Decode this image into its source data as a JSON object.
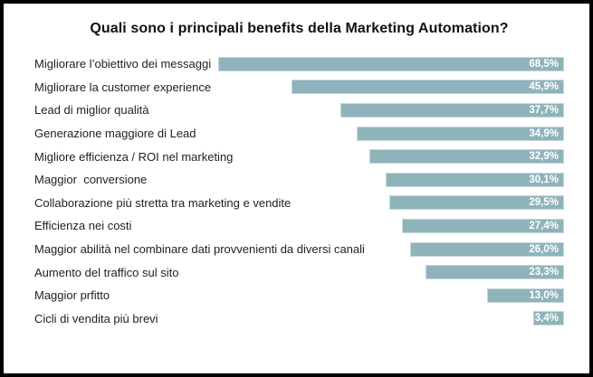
{
  "title": "Quali sono i principali benefits della Marketing Automation?",
  "chart_data": {
    "type": "bar",
    "orientation": "horizontal",
    "title": "Quali sono i principali benefits della Marketing Automation?",
    "categories": [
      "Migliorare l’obiettivo dei messaggi",
      "Migliorare la customer experience",
      "Lead di miglior qualità",
      "Generazione maggiore di Lead",
      "Migliore efficienza / ROI nel marketing",
      "Maggior  conversione",
      "Collaborazione più stretta tra marketing e vendite",
      "Efficienza nei costi",
      "Maggior abilità nel combinare dati provvenienti da diversi canali",
      "Aumento del traffico sul sito",
      "Maggior prfitto",
      "Cicli di vendita più brevi"
    ],
    "values": [
      68.5,
      45.9,
      37.7,
      34.9,
      32.9,
      30.1,
      29.5,
      27.4,
      26.0,
      23.3,
      13.0,
      3.4
    ],
    "value_labels": [
      "68,5%",
      "45,9%",
      "37,7%",
      "34,9%",
      "32,9%",
      "30,1%",
      "29,5%",
      "27,4%",
      "26,0%",
      "23,3%",
      "13,0%",
      "3,4%"
    ],
    "xlabel": "",
    "ylabel": "",
    "xlim": [
      0,
      68.5
    ],
    "grid": false,
    "legend": false,
    "bars_right_aligned": true,
    "value_label_position": "inside-right",
    "colors": {
      "bar_fill": "#8fb3bb",
      "bar_edge": "#c6d7da",
      "value_text": "#ffffff",
      "label_text": "#1f1f1f",
      "title_text": "#111111",
      "frame_border": "#000000",
      "background": "#ffffff"
    }
  }
}
